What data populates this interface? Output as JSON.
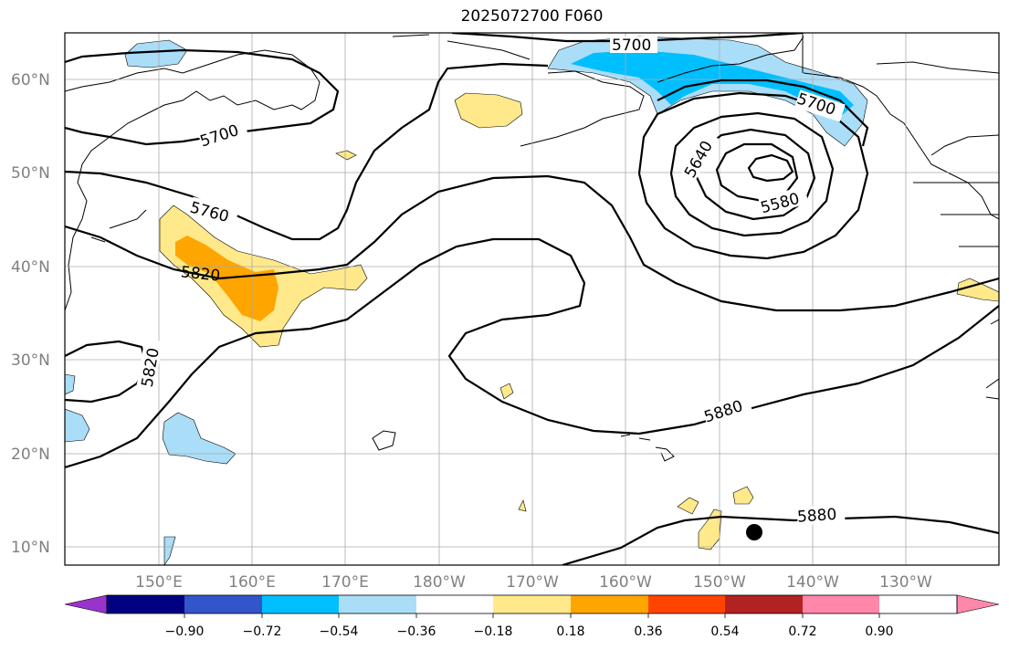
{
  "title": "2025072700 F060",
  "map": {
    "lat_labels": [
      "60°N",
      "50°N",
      "40°N",
      "30°N",
      "20°N",
      "10°N"
    ],
    "lon_labels": [
      "150°E",
      "160°E",
      "170°E",
      "180°W",
      "170°W",
      "160°W",
      "150°W",
      "140°W",
      "130°W"
    ],
    "contour_labels": [
      "5700",
      "5700",
      "5700",
      "5640",
      "5580",
      "5760",
      "5820",
      "5820",
      "5880",
      "5880"
    ],
    "marker": "storm-center-dot"
  },
  "colorbar": {
    "ticks": [
      "−0.90",
      "−0.72",
      "−0.54",
      "−0.36",
      "−0.18",
      "0.18",
      "0.36",
      "0.54",
      "0.72",
      "0.90"
    ],
    "colors": [
      "#9933cc",
      "#000080",
      "#3355cc",
      "#00bfff",
      "#aaddf7",
      "#ffffff",
      "#ffe98a",
      "#ffa500",
      "#ff4400",
      "#b22222",
      "#ff88aa"
    ]
  }
}
